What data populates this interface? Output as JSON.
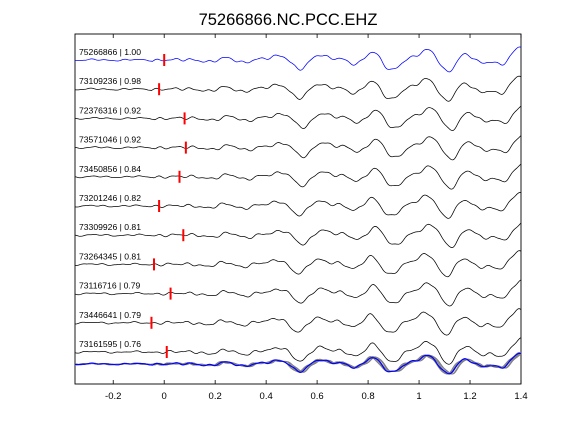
{
  "chart_data": {
    "type": "line",
    "title": "75266866.NC.PCC.EHZ",
    "xlabel": "",
    "ylabel": "",
    "xlim": [
      -0.35,
      1.4
    ],
    "xticks": [
      -0.2,
      0,
      0.2,
      0.4,
      0.6,
      0.8,
      1,
      1.2,
      1.4
    ],
    "xtick_labels": [
      "-0.2",
      "0",
      "0.2",
      "0.4",
      "0.6",
      "0.8",
      "1",
      "1.2",
      "1.4"
    ],
    "grid": false,
    "legend": "none",
    "colors": {
      "master": "#0000ff",
      "trace": "#000000",
      "pick": "#ff0000",
      "overlay": "#808080"
    },
    "traces": [
      {
        "label": "75266866 | 1.00",
        "id": "75266866",
        "cc": 1.0,
        "pick_time": 0.0,
        "master": true
      },
      {
        "label": "73109236 | 0.98",
        "id": "73109236",
        "cc": 0.98,
        "pick_time": -0.02
      },
      {
        "label": "72376316 | 0.92",
        "id": "72376316",
        "cc": 0.92,
        "pick_time": 0.08
      },
      {
        "label": "73571046 | 0.92",
        "id": "73571046",
        "cc": 0.92,
        "pick_time": 0.085
      },
      {
        "label": "73450856 | 0.84",
        "id": "73450856",
        "cc": 0.84,
        "pick_time": 0.06
      },
      {
        "label": "73201246 | 0.82",
        "id": "73201246",
        "cc": 0.82,
        "pick_time": -0.02
      },
      {
        "label": "73309926 | 0.81",
        "id": "73309926",
        "cc": 0.81,
        "pick_time": 0.075
      },
      {
        "label": "73264345 | 0.81",
        "id": "73264345",
        "cc": 0.81,
        "pick_time": -0.04
      },
      {
        "label": "73116716 | 0.79",
        "id": "73116716",
        "cc": 0.79,
        "pick_time": 0.025
      },
      {
        "label": "73446641 | 0.79",
        "id": "73446641",
        "cc": 0.79,
        "pick_time": -0.05
      },
      {
        "label": "73161595 | 0.76",
        "id": "73161595",
        "cc": 0.76,
        "pick_time": 0.01
      }
    ],
    "overlay": {
      "description_visible": false,
      "stack_of_all_traces": true
    }
  }
}
